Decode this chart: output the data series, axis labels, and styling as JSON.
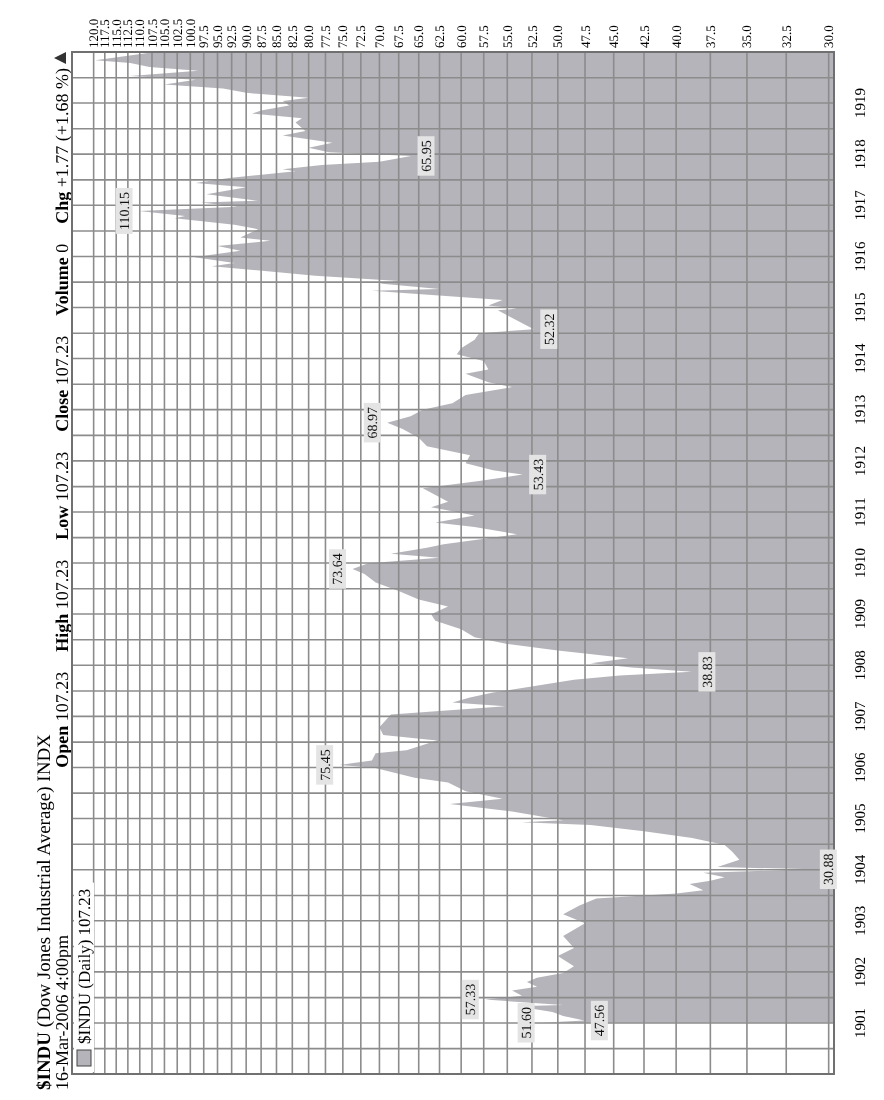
{
  "chart_data": {
    "type": "area",
    "orientation": "horizontal",
    "title": "$INDU (Dow Jones Industrial Average) INDX",
    "subtitle": "16-Mar-2006 4:00pm",
    "annotations": [
      "Open 107.23",
      "High 107.23",
      "Low 107.23",
      "Close 107.23",
      "Volume 0",
      "Chg +1.77 (+1.68 %)",
      {
        "text": "51.60",
        "x": 51.6,
        "y": "1901-01-02"
      },
      {
        "text": "47.56",
        "x": 47.56,
        "y": "1901-01-18"
      },
      {
        "text": "57.33",
        "x": 57.33,
        "y": "1901-06-17"
      },
      {
        "text": "30.88",
        "x": 30.88,
        "y": "1904-01-04"
      },
      {
        "text": "75.45",
        "x": 75.45,
        "y": "1906-01-19"
      },
      {
        "text": "38.83",
        "x": 38.83,
        "y": "1907-11-15"
      },
      {
        "text": "73.64",
        "x": 73.64,
        "y": "1909-11-19"
      },
      {
        "text": "53.43",
        "x": 53.43,
        "y": "1911-09-25"
      },
      {
        "text": "68.97",
        "x": 68.97,
        "y": "1912-09-30"
      },
      {
        "text": "52.32",
        "x": 52.32,
        "y": "1914-07-30"
      },
      {
        "text": "110.15",
        "x": 110.15,
        "y": "1916-11-21"
      },
      {
        "text": "65.95",
        "x": 65.95,
        "y": "1917-12-19"
      }
    ],
    "x": [
      "1901-01-02",
      "1901-01-18",
      "1901-02-20",
      "1901-03-20",
      "1901-04-30",
      "1901-05-09",
      "1901-06-17",
      "1901-07-15",
      "1901-08-20",
      "1901-09-16",
      "1901-10-20",
      "1901-11-20",
      "1901-12-24",
      "1902-02-10",
      "1902-04-24",
      "1902-06-20",
      "1902-09-15",
      "1902-12-15",
      "1903-02-16",
      "1903-04-20",
      "1903-06-10",
      "1903-07-15",
      "1903-08-08",
      "1903-09-20",
      "1903-10-15",
      "1903-11-09",
      "1903-12-10",
      "1904-01-04",
      "1904-01-20",
      "1904-03-12",
      "1904-05-10",
      "1904-06-25",
      "1904-08-15",
      "1904-10-01",
      "1904-11-15",
      "1904-12-05",
      "1904-12-20",
      "1905-02-20",
      "1905-04-14",
      "1905-05-22",
      "1905-07-15",
      "1905-09-15",
      "1905-10-20",
      "1905-12-29",
      "1906-01-19",
      "1906-02-20",
      "1906-04-12",
      "1906-05-03",
      "1906-07-13",
      "1906-08-20",
      "1906-10-15",
      "1906-12-15",
      "1907-01-15",
      "1907-03-14",
      "1907-04-10",
      "1907-05-15",
      "1907-06-20",
      "1907-08-20",
      "1907-09-20",
      "1907-10-20",
      "1907-11-15",
      "1907-12-16",
      "1908-01-15",
      "1908-02-20",
      "1908-04-15",
      "1908-06-01",
      "1908-07-20",
      "1908-09-15",
      "1908-11-15",
      "1908-12-31",
      "1909-02-24",
      "1909-04-15",
      "1909-06-15",
      "1909-08-15",
      "1909-10-15",
      "1909-11-19",
      "1909-12-31",
      "1910-02-08",
      "1910-03-08",
      "1910-04-20",
      "1910-05-15",
      "1910-07-26",
      "1910-09-15",
      "1910-10-18",
      "1910-12-06",
      "1911-02-04",
      "1911-03-15",
      "1911-06-19",
      "1911-08-10",
      "1911-09-25",
      "1911-10-25",
      "1911-12-15",
      "1912-02-10",
      "1912-04-15",
      "1912-06-15",
      "1912-08-15",
      "1912-09-30",
      "1912-11-15",
      "1912-12-31",
      "1913-02-15",
      "1913-04-15",
      "1913-06-11",
      "1913-07-15",
      "1913-09-15",
      "1913-10-15",
      "1913-12-15",
      "1914-02-01",
      "1914-03-15",
      "1914-05-15",
      "1914-07-01",
      "1914-07-30",
      "1914-12-12",
      "1914-12-24",
      "1915-01-15",
      "1915-02-24",
      "1915-04-30",
      "1915-05-14",
      "1915-06-22",
      "1915-07-09",
      "1915-08-16",
      "1915-09-15",
      "1915-10-22",
      "1915-11-15",
      "1915-12-27",
      "1916-02-11",
      "1916-03-15",
      "1916-04-22",
      "1916-05-15",
      "1916-07-13",
      "1916-08-15",
      "1916-09-30",
      "1916-10-16",
      "1916-11-21",
      "1916-12-21",
      "1917-01-20",
      "1917-02-02",
      "1917-03-20",
      "1917-05-09",
      "1917-06-09",
      "1917-07-15",
      "1917-08-31",
      "1917-09-15",
      "1917-10-15",
      "1917-11-08",
      "1917-12-19",
      "1918-01-15",
      "1918-02-15",
      "1918-03-23",
      "1918-05-15",
      "1918-06-15",
      "1918-08-15",
      "1918-09-15",
      "1918-10-18",
      "1918-11-09",
      "1918-12-15",
      "1919-01-15",
      "1919-02-08",
      "1919-03-15",
      "1919-04-15",
      "1919-05-14",
      "1919-06-16",
      "1919-07-14",
      "1919-08-20",
      "1919-09-15",
      "1919-10-15",
      "1919-11-03",
      "1919-12-31"
    ],
    "series": [
      {
        "name": "$INDU (Daily) 107.23",
        "color": "#b4b4ba",
        "values": [
          51.6,
          47.56,
          49.5,
          50.5,
          54,
          49.5,
          57.33,
          53.5,
          54.5,
          52,
          53,
          52,
          49.5,
          48.5,
          50,
          48.5,
          49.5,
          47.5,
          49.5,
          48,
          46.5,
          40,
          38,
          39,
          37.5,
          36.5,
          38,
          30.88,
          37,
          35.5,
          36,
          36.5,
          38.8,
          42.5,
          47,
          53.5,
          49.5,
          54.5,
          61.3,
          55.5,
          59.5,
          61.5,
          65.5,
          70.7,
          75.45,
          71,
          70.5,
          66.5,
          62.8,
          69.5,
          70,
          69,
          68.5,
          55.2,
          61,
          59,
          56.5,
          51,
          48.5,
          44.5,
          38.83,
          43.5,
          47,
          43.8,
          50,
          55,
          58.5,
          60,
          63,
          63.5,
          61.5,
          65,
          67.5,
          70.5,
          72,
          73.64,
          71.5,
          62.5,
          68.5,
          64,
          62,
          54,
          58.5,
          63,
          58.5,
          63.5,
          61.5,
          64.5,
          58,
          53.43,
          56.5,
          59.5,
          59,
          64,
          65,
          67,
          68.97,
          66,
          64.5,
          61,
          59.5,
          54.5,
          57,
          59.5,
          57,
          57.5,
          60.5,
          60,
          58.5,
          58,
          52.32,
          56,
          54,
          57,
          55.5,
          71,
          62.5,
          70,
          67.5,
          79,
          86,
          96,
          92,
          99.2,
          91,
          95,
          86,
          91,
          88,
          92,
          103,
          101,
          110.15,
          91.5,
          98,
          88,
          97,
          90,
          99,
          93,
          82,
          84,
          78,
          70,
          65.95,
          77,
          80,
          76.5,
          84,
          80.5,
          82,
          81,
          89,
          87.5,
          83,
          84,
          80,
          90,
          94,
          105,
          99,
          112,
          98.5,
          108,
          112,
          119.6,
          107.23
        ]
      }
    ],
    "xlim": [
      125,
      29.7
    ],
    "xticks": [
      {
        "value": 120,
        "label": "120.0"
      },
      117.5,
      {
        "value": 115,
        "label": "115.0"
      },
      112.5,
      {
        "value": 110,
        "label": "110.0"
      },
      107.5,
      {
        "value": 105,
        "label": "105.0"
      },
      102.5,
      {
        "value": 100,
        "label": "100.0"
      },
      97.5,
      {
        "value": 95,
        "label": "95.0"
      },
      92.5,
      {
        "value": 90,
        "label": "90.0"
      },
      87.5,
      {
        "value": 85,
        "label": "85.0"
      },
      82.5,
      {
        "value": 80,
        "label": "80.0"
      },
      77.5,
      {
        "value": 75,
        "label": "75.0"
      },
      72.5,
      {
        "value": 70,
        "label": "70.0"
      },
      67.5,
      {
        "value": 65,
        "label": "65.0"
      },
      62.5,
      {
        "value": 60,
        "label": "60.0"
      },
      57.5,
      {
        "value": 55,
        "label": "55.0"
      },
      52.5,
      {
        "value": 50,
        "label": "50.0"
      },
      47.5,
      {
        "value": 45,
        "label": "45.0"
      },
      42.5,
      {
        "value": 40,
        "label": "40.0"
      },
      37.5,
      {
        "value": 35,
        "label": "35.0"
      },
      32.5,
      {
        "value": 30,
        "label": "30.0"
      }
    ],
    "ylim": [
      "1900-01-01",
      "1920-01-01"
    ],
    "yticks": [
      {
        "value": "1900-07",
        "label": null
      },
      "1901",
      {
        "value": "1901-07",
        "label": null
      },
      "1902",
      {
        "value": "1902-07",
        "label": null
      },
      "1903",
      {
        "value": "1903-07",
        "label": null
      },
      "1904",
      {
        "value": "1904-07",
        "label": null
      },
      "1905",
      {
        "value": "1905-07",
        "label": null
      },
      "1906",
      {
        "value": "1906-07",
        "label": null
      },
      "1907",
      {
        "value": "1907-07",
        "label": null
      },
      "1908",
      {
        "value": "1908-07",
        "label": null
      },
      "1909",
      {
        "value": "1909-07",
        "label": null
      },
      "1910",
      {
        "value": "1910-07",
        "label": null
      },
      "1911",
      {
        "value": "1911-07",
        "label": null
      },
      "1912",
      {
        "value": "1912-07",
        "label": null
      },
      "1913",
      {
        "value": "1913-07",
        "label": null
      },
      "1914",
      {
        "value": "1914-07",
        "label": null
      },
      "1915",
      {
        "value": "1915-07",
        "label": null
      },
      "1916",
      {
        "value": "1916-07",
        "label": null
      },
      "1917",
      {
        "value": "1917-07",
        "label": null
      },
      "1918",
      {
        "value": "1918-07",
        "label": null
      },
      "1919",
      {
        "value": "1919-07",
        "label": null
      }
    ],
    "log": "x",
    "grid": true,
    "legend": "bottom left"
  }
}
